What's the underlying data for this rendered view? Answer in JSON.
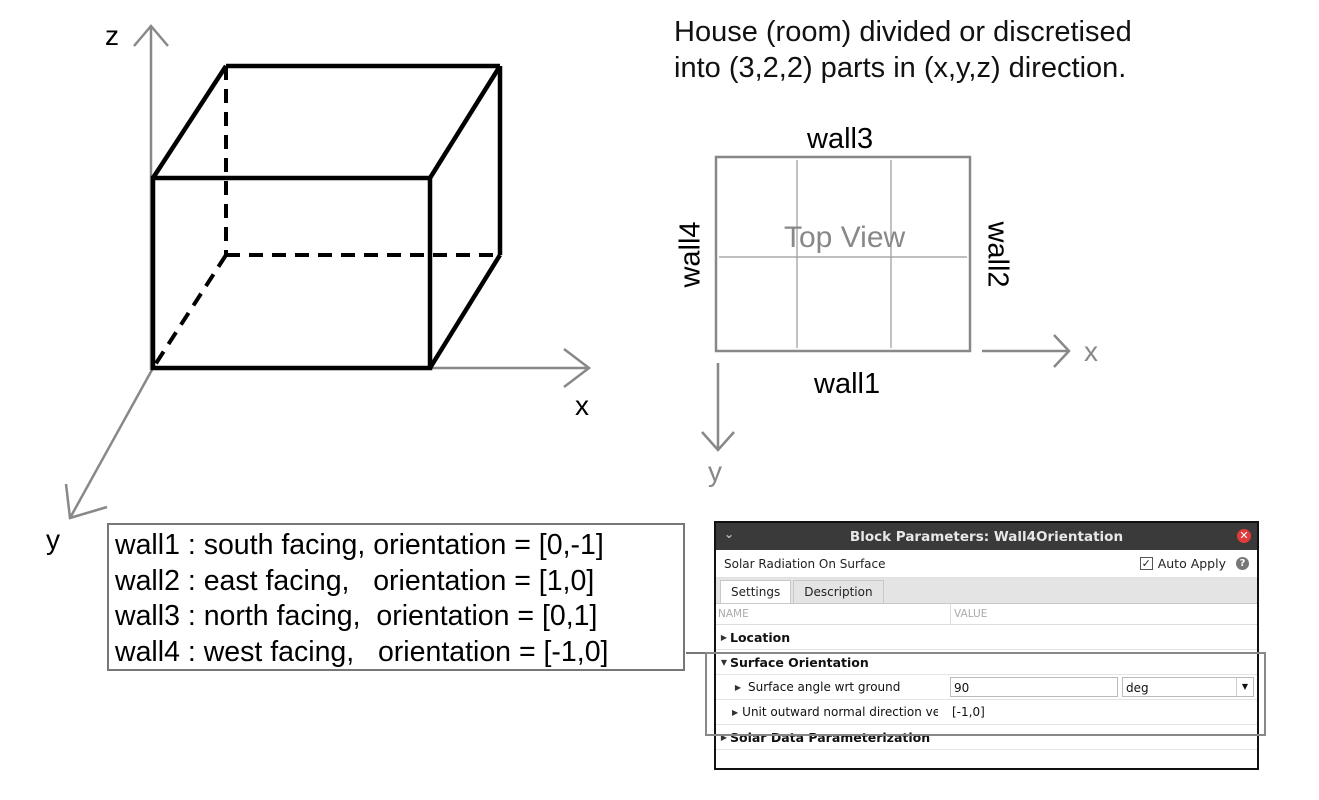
{
  "axes3d": {
    "z": "z",
    "x": "x",
    "y": "y"
  },
  "description": {
    "line1": "House (room) divided or discretised",
    "line2": "into (3,2,2) parts in (x,y,z) direction."
  },
  "top_view": {
    "title": "Top View",
    "wall_top": "wall3",
    "wall_bottom": "wall1",
    "wall_left": "wall4",
    "wall_right": "wall2",
    "axis_x": "x",
    "axis_y": "y"
  },
  "legend": {
    "lines": [
      "wall1 : south facing, orientation = [0,-1]",
      "wall2 : east facing,   orientation = [1,0]",
      "wall3 : north facing,  orientation = [0,1]",
      "wall4 : west facing,   orientation = [-1,0]"
    ]
  },
  "dialog": {
    "title": "Block Parameters: Wall4Orientation",
    "subtitle": "Solar Radiation On Surface",
    "auto_apply_label": "Auto Apply",
    "auto_apply_checked": true,
    "tabs": [
      {
        "label": "Settings"
      },
      {
        "label": "Description"
      }
    ],
    "columns": {
      "name": "NAME",
      "value": "VALUE"
    },
    "sections": {
      "location": "Location",
      "surface_orientation": "Surface Orientation",
      "solar_data": "Solar Data Parameterization"
    },
    "params": {
      "angle": {
        "label": "Surface angle wrt ground",
        "value": "90",
        "unit": "deg"
      },
      "normal": {
        "label": "Unit outward normal direction vec...",
        "value": "[-1,0]"
      }
    }
  }
}
